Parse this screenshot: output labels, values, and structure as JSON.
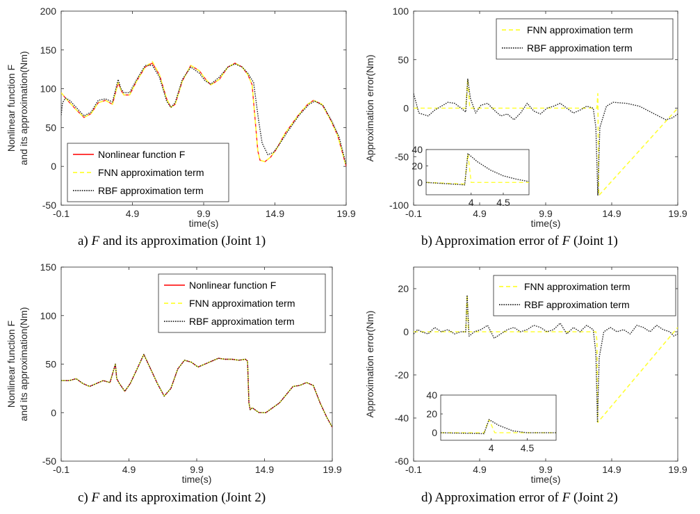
{
  "captions": [
    {
      "pre": "a) ",
      "sym": "F",
      "post": " and its approximation (Joint 1)"
    },
    {
      "pre": "b) Approximation error of ",
      "sym": "F",
      "post": " (Joint 1)"
    },
    {
      "pre": "c) ",
      "sym": "F",
      "post": " and its approximation (Joint 2)"
    },
    {
      "pre": "d) Approximation error of ",
      "sym": "F",
      "post": " (Joint 2)"
    }
  ],
  "colors": {
    "nonlinear": "#ff2020",
    "fnn": "#ffff33",
    "rbf": "#222222",
    "axis": "#262626"
  },
  "chart_data": [
    {
      "type": "line",
      "xlabel": "time(s)",
      "ylabel": [
        "Nonlinear function F",
        "and its approximation(Nm)"
      ],
      "xlim": [
        -0.1,
        19.9
      ],
      "ylim": [
        -50,
        200
      ],
      "xticks": [
        -0.1,
        4.9,
        9.9,
        14.9,
        19.9
      ],
      "yticks": [
        -50,
        0,
        50,
        100,
        150,
        200
      ],
      "legend_position": "bottom-left",
      "series": [
        {
          "name": "Nonlinear function F",
          "style": "solid",
          "color": "#ff2020",
          "x": [
            -0.1,
            0.2,
            0.5,
            1.0,
            1.5,
            2.0,
            2.5,
            3.0,
            3.5,
            3.9,
            4.1,
            4.3,
            4.7,
            5.2,
            5.8,
            6.3,
            6.8,
            7.3,
            7.6,
            7.9,
            8.4,
            9.0,
            9.6,
            10.0,
            10.4,
            11.0,
            11.6,
            12.1,
            12.6,
            13.0,
            13.3,
            13.7,
            13.85,
            14.2,
            14.6,
            15.0,
            15.6,
            16.5,
            17.2,
            17.6,
            18.2,
            18.8,
            19.3,
            19.9
          ],
          "y": [
            95,
            88,
            82,
            72,
            63,
            68,
            82,
            85,
            80,
            108,
            98,
            92,
            92,
            110,
            128,
            133,
            118,
            87,
            76,
            80,
            110,
            130,
            123,
            113,
            105,
            112,
            128,
            133,
            128,
            118,
            105,
            20,
            8,
            6,
            12,
            22,
            42,
            65,
            80,
            85,
            80,
            60,
            40,
            0
          ]
        },
        {
          "name": "FNN approximation term",
          "style": "dashed",
          "color": "#ffff33",
          "x": [
            -0.1,
            0.2,
            0.5,
            1.0,
            1.5,
            2.0,
            2.5,
            3.0,
            3.5,
            3.9,
            4.1,
            4.3,
            4.7,
            5.2,
            5.8,
            6.3,
            6.8,
            7.3,
            7.6,
            7.9,
            8.4,
            9.0,
            9.6,
            10.0,
            10.4,
            11.0,
            11.6,
            12.1,
            12.6,
            13.0,
            13.3,
            13.7,
            13.85,
            14.2,
            14.6,
            15.0,
            15.6,
            16.5,
            17.2,
            17.6,
            18.2,
            18.8,
            19.3,
            19.9
          ],
          "y": [
            95,
            88,
            82,
            72,
            63,
            68,
            82,
            85,
            80,
            108,
            98,
            92,
            92,
            110,
            128,
            135,
            118,
            87,
            76,
            80,
            110,
            130,
            123,
            113,
            105,
            112,
            128,
            133,
            128,
            118,
            105,
            20,
            8,
            6,
            12,
            22,
            42,
            65,
            80,
            85,
            80,
            60,
            40,
            0
          ]
        },
        {
          "name": "RBF approximation term",
          "style": "dotted",
          "color": "#222222",
          "x": [
            -0.1,
            0.0,
            0.2,
            0.5,
            1.0,
            1.5,
            2.0,
            2.5,
            3.0,
            3.5,
            3.9,
            4.1,
            4.3,
            4.7,
            5.2,
            5.8,
            6.3,
            6.8,
            7.3,
            7.6,
            7.9,
            8.4,
            9.0,
            9.6,
            10.0,
            10.4,
            11.0,
            11.6,
            12.1,
            12.6,
            13.0,
            13.4,
            13.75,
            14.0,
            14.4,
            14.8,
            15.2,
            15.8,
            16.6,
            17.3,
            17.7,
            18.3,
            18.9,
            19.4,
            19.9
          ],
          "y": [
            66,
            82,
            88,
            85,
            75,
            65,
            70,
            85,
            87,
            83,
            112,
            100,
            95,
            95,
            112,
            130,
            130,
            115,
            84,
            76,
            82,
            112,
            128,
            120,
            110,
            106,
            115,
            128,
            132,
            128,
            120,
            108,
            60,
            30,
            15,
            18,
            28,
            45,
            66,
            80,
            84,
            78,
            58,
            38,
            2
          ]
        }
      ],
      "inset": null
    },
    {
      "type": "line",
      "xlabel": "time(s)",
      "ylabel": [
        "Approximation error(Nm)"
      ],
      "xlim": [
        -0.1,
        19.9
      ],
      "ylim": [
        -100,
        100
      ],
      "xticks": [
        -0.1,
        4.9,
        9.9,
        14.9,
        19.9
      ],
      "yticks": [
        -100,
        -50,
        0,
        50,
        100
      ],
      "legend_position": "top-right",
      "series": [
        {
          "name": "FNN approximation term",
          "style": "dashed",
          "color": "#ffff33",
          "x": [
            -0.1,
            3.85,
            4.0,
            4.15,
            13.78,
            13.85,
            13.92,
            19.9
          ],
          "y": [
            0,
            0,
            30,
            0,
            0,
            15,
            -90,
            0
          ]
        },
        {
          "name": "RBF approximation term",
          "style": "dotted",
          "color": "#222222",
          "x": [
            -0.1,
            0.0,
            0.3,
            1.0,
            1.5,
            2.0,
            2.5,
            3.0,
            3.5,
            3.85,
            4.0,
            4.2,
            4.6,
            5.0,
            5.5,
            6.0,
            6.5,
            7.0,
            7.5,
            8.0,
            8.5,
            9.0,
            9.5,
            10.0,
            10.5,
            11.0,
            11.5,
            12.0,
            12.5,
            13.0,
            13.5,
            13.7,
            13.85,
            14.0,
            14.5,
            15.0,
            16.0,
            17.0,
            18.0,
            19.0,
            19.5,
            19.9
          ],
          "y": [
            15,
            10,
            -5,
            -8,
            -2,
            2,
            6,
            5,
            0,
            -4,
            30,
            10,
            -5,
            3,
            5,
            -2,
            -8,
            -6,
            -12,
            -5,
            5,
            -3,
            -6,
            0,
            2,
            5,
            0,
            -5,
            -2,
            2,
            0,
            -20,
            -90,
            -20,
            2,
            6,
            5,
            2,
            -5,
            -12,
            -10,
            -6
          ]
        }
      ],
      "inset": {
        "xlim": [
          3.3,
          4.9
        ],
        "ylim": [
          -15,
          40
        ],
        "xticks": [
          4,
          4.5
        ],
        "yticks": [
          0,
          20,
          40
        ],
        "series": [
          {
            "style": "dashed",
            "color": "#ffff33",
            "x": [
              3.3,
              3.9,
              3.95,
              4.0,
              4.9
            ],
            "y": [
              0,
              -2,
              35,
              0,
              0
            ]
          },
          {
            "style": "dotted",
            "color": "#222222",
            "x": [
              3.3,
              3.9,
              3.95,
              4.1,
              4.3,
              4.5,
              4.7,
              4.9
            ],
            "y": [
              0,
              -3,
              35,
              25,
              15,
              8,
              4,
              1
            ]
          }
        ]
      }
    },
    {
      "type": "line",
      "xlabel": "time(s)",
      "ylabel": [
        "Nonlinear function F",
        "and its approximation(Nm)"
      ],
      "xlim": [
        -0.1,
        19.9
      ],
      "ylim": [
        -50,
        150
      ],
      "xticks": [
        -0.1,
        4.9,
        9.9,
        14.9,
        19.9
      ],
      "yticks": [
        -50,
        0,
        50,
        100,
        150
      ],
      "legend_position": "top-right",
      "series": [
        {
          "name": "Nonlinear function F",
          "style": "solid",
          "color": "#ff2020",
          "x": [
            -0.1,
            0.5,
            1.0,
            1.5,
            2.0,
            2.5,
            3.0,
            3.5,
            3.9,
            4.0,
            4.2,
            4.6,
            5.0,
            5.5,
            6.0,
            6.5,
            7.0,
            7.5,
            8.0,
            8.5,
            9.0,
            9.5,
            10.0,
            10.5,
            11.0,
            11.5,
            12.0,
            12.5,
            13.0,
            13.5,
            13.65,
            13.75,
            13.85,
            14.0,
            14.5,
            15.0,
            16.0,
            17.0,
            17.5,
            18.0,
            18.5,
            19.0,
            19.5,
            19.9
          ],
          "y": [
            33,
            33,
            35,
            30,
            27,
            30,
            33,
            31,
            50,
            35,
            30,
            22,
            30,
            45,
            60,
            45,
            30,
            17,
            25,
            45,
            54,
            52,
            47,
            50,
            53,
            56,
            55,
            55,
            54,
            55,
            53,
            10,
            3,
            5,
            0,
            0,
            10,
            27,
            28,
            31,
            28,
            10,
            -5,
            -15
          ]
        },
        {
          "name": "FNN approximation term",
          "style": "dashed",
          "color": "#ffff33",
          "x": [
            -0.1,
            0.5,
            1.0,
            1.5,
            2.0,
            2.5,
            3.0,
            3.5,
            3.9,
            4.0,
            4.2,
            4.6,
            5.0,
            5.5,
            6.0,
            6.5,
            7.0,
            7.5,
            8.0,
            8.5,
            9.0,
            9.5,
            10.0,
            10.5,
            11.0,
            11.5,
            12.0,
            12.5,
            13.0,
            13.5,
            13.65,
            13.75,
            13.85,
            14.0,
            14.5,
            15.0,
            16.0,
            17.0,
            17.5,
            18.0,
            18.5,
            19.0,
            19.5,
            19.9
          ],
          "y": [
            33,
            33,
            35,
            30,
            27,
            30,
            33,
            31,
            50,
            35,
            30,
            22,
            30,
            45,
            60,
            45,
            30,
            17,
            25,
            45,
            54,
            52,
            47,
            50,
            53,
            56,
            55,
            55,
            54,
            55,
            53,
            10,
            3,
            5,
            0,
            0,
            10,
            27,
            28,
            31,
            28,
            10,
            -5,
            -15
          ]
        },
        {
          "name": "RBF approximation term",
          "style": "dotted",
          "color": "#222222",
          "x": [
            -0.1,
            0.5,
            1.0,
            1.5,
            2.0,
            2.5,
            3.0,
            3.5,
            3.9,
            4.0,
            4.2,
            4.6,
            5.0,
            5.5,
            6.0,
            6.5,
            7.0,
            7.5,
            8.0,
            8.5,
            9.0,
            9.5,
            10.0,
            10.5,
            11.0,
            11.5,
            12.0,
            12.5,
            13.0,
            13.5,
            13.65,
            13.75,
            13.85,
            14.0,
            14.5,
            15.0,
            16.0,
            17.0,
            17.5,
            18.0,
            18.5,
            19.0,
            19.5,
            19.9
          ],
          "y": [
            33,
            33,
            35,
            30,
            27,
            30,
            33,
            31,
            50,
            35,
            30,
            22,
            30,
            45,
            60,
            45,
            30,
            17,
            25,
            45,
            54,
            52,
            47,
            50,
            53,
            56,
            55,
            55,
            54,
            55,
            53,
            10,
            3,
            5,
            0,
            0,
            10,
            27,
            28,
            31,
            28,
            10,
            -5,
            -15
          ]
        }
      ],
      "inset": null
    },
    {
      "type": "line",
      "xlabel": "time(s)",
      "ylabel": [
        "Approximation error(Nm)"
      ],
      "xlim": [
        -0.1,
        19.9
      ],
      "ylim": [
        -60,
        30
      ],
      "xticks": [
        -0.1,
        4.9,
        9.9,
        14.9,
        19.9
      ],
      "yticks": [
        -60,
        -40,
        -20,
        0,
        20
      ],
      "legend_position": "top-right",
      "series": [
        {
          "name": "FNN approximation term",
          "style": "dashed",
          "color": "#ffff33",
          "x": [
            -0.1,
            3.85,
            3.95,
            4.05,
            13.7,
            13.78,
            13.85,
            19.9
          ],
          "y": [
            0,
            0,
            17,
            0,
            0,
            -4,
            -42,
            2
          ]
        },
        {
          "name": "RBF approximation term",
          "style": "dotted",
          "color": "#222222",
          "x": [
            -0.1,
            0.2,
            0.5,
            1.0,
            1.5,
            2.0,
            2.5,
            3.0,
            3.5,
            3.85,
            3.95,
            4.1,
            4.5,
            5.0,
            5.5,
            6.0,
            6.5,
            7.0,
            7.5,
            8.0,
            8.5,
            9.0,
            9.5,
            10.0,
            10.5,
            11.0,
            11.5,
            12.0,
            12.5,
            13.0,
            13.5,
            13.7,
            13.82,
            13.95,
            14.3,
            14.8,
            15.3,
            15.8,
            16.3,
            16.8,
            17.3,
            17.8,
            18.3,
            18.8,
            19.3,
            19.6,
            19.9
          ],
          "y": [
            -1,
            1,
            0,
            -1,
            2,
            0,
            1,
            -1,
            0,
            0,
            17,
            -2,
            0,
            1,
            3,
            -3,
            -1,
            1,
            2,
            0,
            1,
            3,
            2,
            0,
            1,
            4,
            -1,
            2,
            0,
            3,
            1,
            -10,
            -42,
            -12,
            0,
            2,
            0,
            1,
            -1,
            3,
            2,
            0,
            3,
            1,
            0,
            -2,
            -1
          ]
        }
      ],
      "inset": {
        "xlim": [
          3.3,
          4.9
        ],
        "ylim": [
          -8,
          40
        ],
        "xticks": [
          4,
          4.5
        ],
        "yticks": [
          0,
          20,
          40
        ],
        "series": [
          {
            "style": "dashed",
            "color": "#ffff33",
            "x": [
              3.3,
              3.9,
              3.97,
              4.05,
              4.9
            ],
            "y": [
              0,
              0,
              14,
              0,
              0
            ]
          },
          {
            "style": "dotted",
            "color": "#222222",
            "x": [
              3.3,
              3.9,
              3.97,
              4.1,
              4.3,
              4.5,
              4.9
            ],
            "y": [
              0,
              -1,
              14,
              8,
              2,
              0,
              0
            ]
          }
        ]
      }
    }
  ]
}
